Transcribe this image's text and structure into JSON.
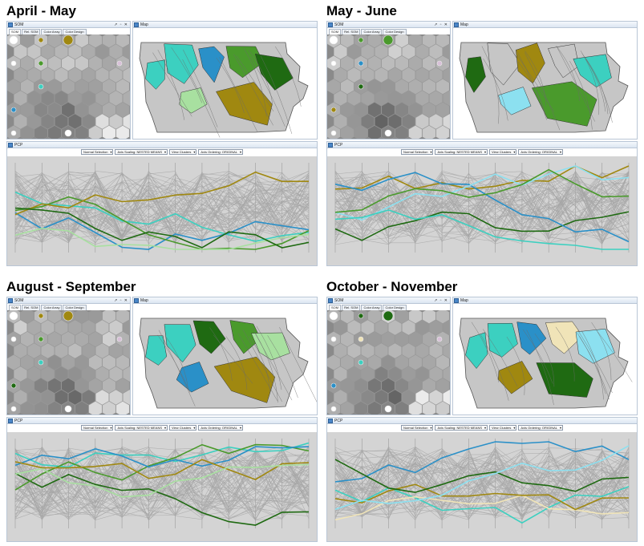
{
  "panels": [
    {
      "title": "April - May",
      "som_window": {
        "title": "SOM",
        "tabs": [
          "SOM",
          "Rel. SOM",
          "Color Array",
          "Color Design"
        ]
      },
      "map_window": {
        "title": "Map"
      },
      "pcp_window": {
        "title": "PCP"
      },
      "pcp_toolbar": {
        "selection": "Normal Selection",
        "scaling": "Axis Scaling: NESTED MEANS",
        "view": "View Clusters",
        "ordering": "Axis Ordering: ORIGINAL"
      }
    },
    {
      "title": "May - June",
      "som_window": {
        "title": "SOM",
        "tabs": [
          "SOM",
          "Rel. SOM",
          "Color Array",
          "Color Design"
        ]
      },
      "map_window": {
        "title": "Map"
      },
      "pcp_window": {
        "title": "PCP"
      },
      "pcp_toolbar": {
        "selection": "Normal Selection",
        "scaling": "Axis Scaling: NESTED MEANS",
        "view": "View Clusters",
        "ordering": "Axis Ordering: ORIGINAL"
      }
    },
    {
      "title": "August - September",
      "som_window": {
        "title": "SOM",
        "tabs": [
          "SOM",
          "Rel. SOM",
          "Color Array",
          "Color Design"
        ]
      },
      "map_window": {
        "title": "Map"
      },
      "pcp_window": {
        "title": "PCP"
      },
      "pcp_toolbar": {
        "selection": "Normal Selection",
        "scaling": "Axis Scaling: NESTED MEANS",
        "view": "View Clusters",
        "ordering": "Axis Ordering: ORIGINAL"
      }
    },
    {
      "title": "October - November",
      "som_window": {
        "title": "SOM",
        "tabs": [
          "SOM",
          "Rel. SOM",
          "Color Array",
          "Color Design"
        ]
      },
      "map_window": {
        "title": "Map"
      },
      "pcp_window": {
        "title": "PCP"
      },
      "pcp_toolbar": {
        "selection": "Normal Selection",
        "scaling": "Axis Scaling: NESTED MEANS",
        "view": "View Clusters",
        "ordering": "Axis Ordering: ORIGINAL"
      }
    }
  ],
  "window_buttons": "↗ ▫ ✕",
  "colors": {
    "cluster_olive": "#a08810",
    "cluster_dark_green": "#1f6a12",
    "cluster_green": "#4a9a2c",
    "cluster_light_green": "#a8e0a0",
    "cluster_teal": "#3cd0c0",
    "cluster_blue": "#2a90c8",
    "cluster_sky": "#8ce0f0",
    "cluster_cream": "#f0e4b8",
    "map_base": "#c6c6c6",
    "pcp_background": "#d4d4d4",
    "window_border": "#b9c6d6"
  }
}
